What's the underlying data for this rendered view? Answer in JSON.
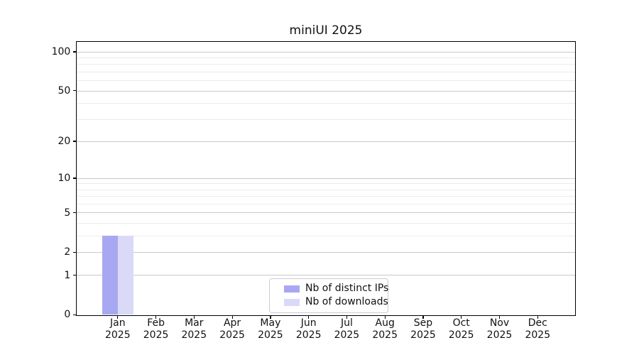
{
  "figure": {
    "title": "miniUI 2025"
  },
  "chart_data": {
    "type": "bar",
    "title": "miniUI 2025",
    "categories": [
      "Jan",
      "Feb",
      "Mar",
      "Apr",
      "May",
      "Jun",
      "Jul",
      "Aug",
      "Sep",
      "Oct",
      "Nov",
      "Dec"
    ],
    "category_year": "2025",
    "series": [
      {
        "name": "Nb of distinct IPs",
        "color": "#a8a8f2",
        "values": [
          3,
          0,
          0,
          0,
          0,
          0,
          0,
          0,
          0,
          0,
          0,
          0
        ]
      },
      {
        "name": "Nb of downloads",
        "color": "#dadaf8",
        "values": [
          3,
          0,
          0,
          0,
          0,
          0,
          0,
          0,
          0,
          0,
          0,
          0
        ]
      }
    ],
    "y_axis": {
      "scale": "log1p",
      "range": [
        0,
        100
      ],
      "major_ticks": [
        0,
        1,
        2,
        5,
        10,
        20,
        50,
        100
      ],
      "minor_ticks": [
        3,
        4,
        6,
        7,
        8,
        9,
        30,
        40,
        60,
        70,
        80,
        90
      ]
    },
    "grid": "horizontal major+minor",
    "legend_position": "lower center inside plot",
    "colors": {
      "spine": "#000000",
      "major_grid": "#c9c9c9",
      "minor_grid": "#ebebeb",
      "background": "#ffffff"
    }
  }
}
